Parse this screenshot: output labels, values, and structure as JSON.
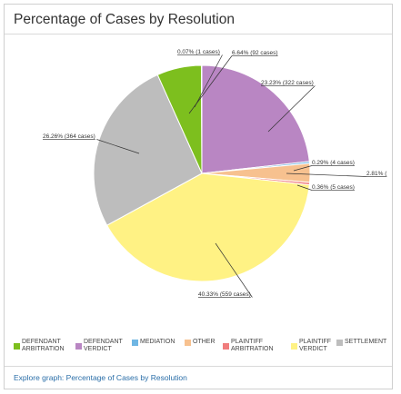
{
  "panel": {
    "title": "Percentage of Cases by Resolution",
    "explore_link": "Explore graph: Percentage of Cases by Resolution"
  },
  "chart_data": {
    "type": "pie",
    "title": "Percentage of Cases by Resolution",
    "slices": [
      {
        "name": "DEFENDANT ARBITRATION",
        "percent": 0.07,
        "cases": 1,
        "label": "0.07% (1 cases)",
        "color": "#ffffff"
      },
      {
        "name": "DEFENDANT VERDICT",
        "percent": 23.23,
        "cases": 322,
        "label": "23.23% (322 cases)",
        "color": "#b986c3"
      },
      {
        "name": "MEDIATION",
        "percent": 0.29,
        "cases": 4,
        "label": "0.29% (4 cases)",
        "color": "#6fb6e3"
      },
      {
        "name": "OTHER",
        "percent": 2.81,
        "cases": 39,
        "label": "2.81% (",
        "color": "#f7c18f"
      },
      {
        "name": "PLAINTIFF ARBITRATION",
        "percent": 0.36,
        "cases": 5,
        "label": "0.36% (5 cases)",
        "color": "#f07d7d"
      },
      {
        "name": "PLAINTIFF VERDICT",
        "percent": 40.33,
        "cases": 559,
        "label": "40.33% (559 cases)",
        "color": "#fff284"
      },
      {
        "name": "SETTLEMENT",
        "percent": 26.26,
        "cases": 364,
        "label": "26.26% (364 cases)",
        "color": "#bdbdbd"
      },
      {
        "name": "",
        "percent": 6.64,
        "cases": 92,
        "label": "6.64% (92 cases)",
        "color": "#7dbf1e"
      }
    ],
    "legend": {
      "placement": "bottom",
      "entries": [
        {
          "label": "DEFENDANT ARBITRATION",
          "color": "#7dbf1e"
        },
        {
          "label": "DEFENDANT VERDICT",
          "color": "#b986c3"
        },
        {
          "label": "MEDIATION",
          "color": "#6fb6e3"
        },
        {
          "label": "OTHER",
          "color": "#f7c18f"
        },
        {
          "label": "PLAINTIFF ARBITRATION",
          "color": "#f07d7d"
        },
        {
          "label": "PLAINTIFF VERDICT",
          "color": "#fff284"
        },
        {
          "label": "SETTLEMENT",
          "color": "#bdbdbd"
        },
        {
          "label": "",
          "color": "#f3d400"
        }
      ]
    }
  }
}
